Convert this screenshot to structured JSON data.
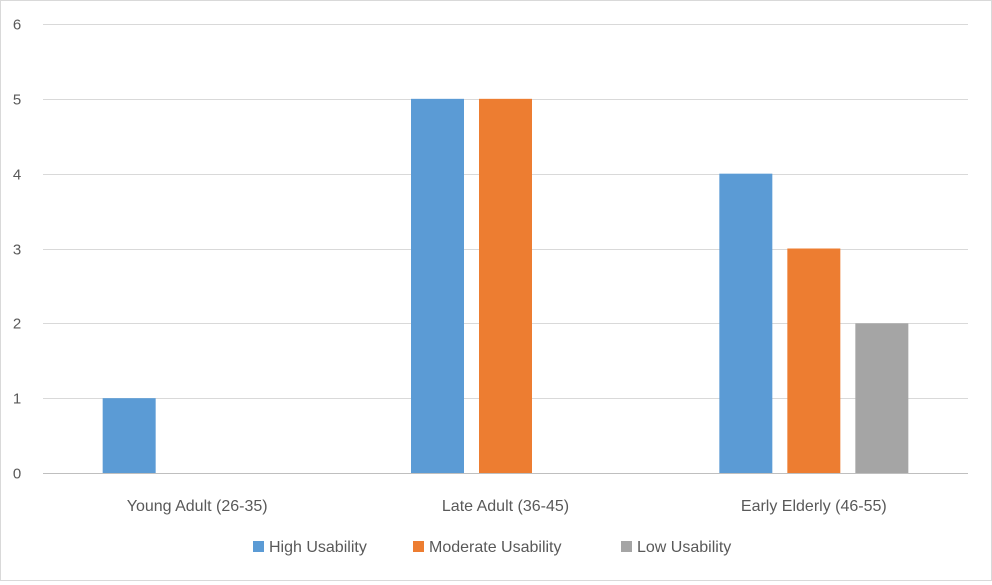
{
  "chart_data": {
    "type": "bar",
    "title": "",
    "xlabel": "",
    "ylabel": "",
    "categories": [
      "Young Adult (26-35)",
      "Late Adult (36-45)",
      "Early Elderly (46-55)"
    ],
    "series": [
      {
        "name": "High Usability",
        "values": [
          1,
          5,
          4
        ],
        "color": "#5B9BD5"
      },
      {
        "name": "Moderate Usability",
        "values": [
          null,
          5,
          3
        ],
        "color": "#ED7D31"
      },
      {
        "name": "Low Usability",
        "values": [
          null,
          null,
          2
        ],
        "color": "#A5A5A5"
      }
    ],
    "ylim": [
      0,
      6
    ],
    "yticks": [
      0,
      1,
      2,
      3,
      4,
      5,
      6
    ],
    "grid": true,
    "legend_position": "bottom"
  }
}
